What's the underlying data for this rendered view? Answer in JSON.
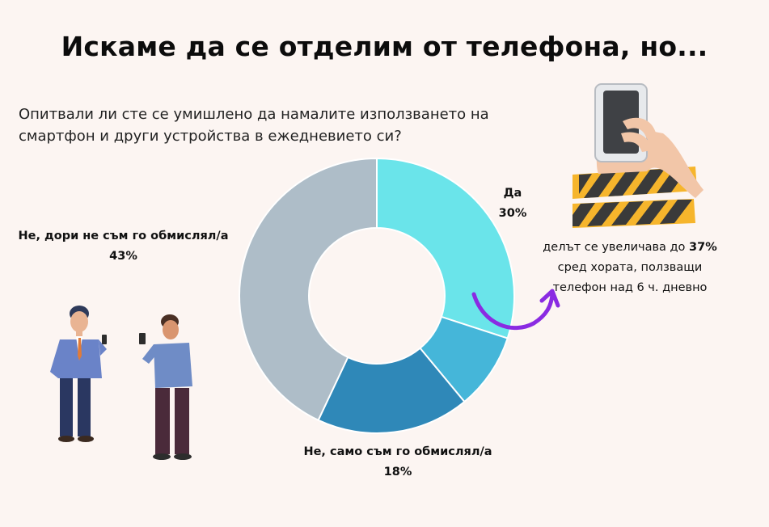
{
  "title": "Искаме да се отделим от телефона, но...",
  "question": "Опитвали ли сте се умишлено да намалите използването на смартфон и други устройства в ежедневието си?",
  "note": {
    "before": "делът се увеличава до ",
    "highlight": "37%",
    "after": " сред хората, ползващи телефон над 6 ч. дневно"
  },
  "icons": {
    "hand": "hand-holding-phone-icon",
    "tape": "caution-tape-icon",
    "arrow": "curved-arrow-icon",
    "people": "people-using-phones-illustration"
  },
  "chart_data": {
    "type": "pie",
    "donut": true,
    "slices": [
      {
        "label": "Да",
        "value": 30,
        "display": "30%",
        "color": "#6ae4ea"
      },
      {
        "label": "",
        "value": 9,
        "display": "",
        "color": "#45b6d9"
      },
      {
        "label": "Не, само съм го обмислял/а",
        "value": 18,
        "display": "18%",
        "color": "#2f88b8"
      },
      {
        "label": "Не, дори не съм го обмислял/а",
        "value": 43,
        "display": "43%",
        "color": "#aebdc8"
      }
    ]
  }
}
